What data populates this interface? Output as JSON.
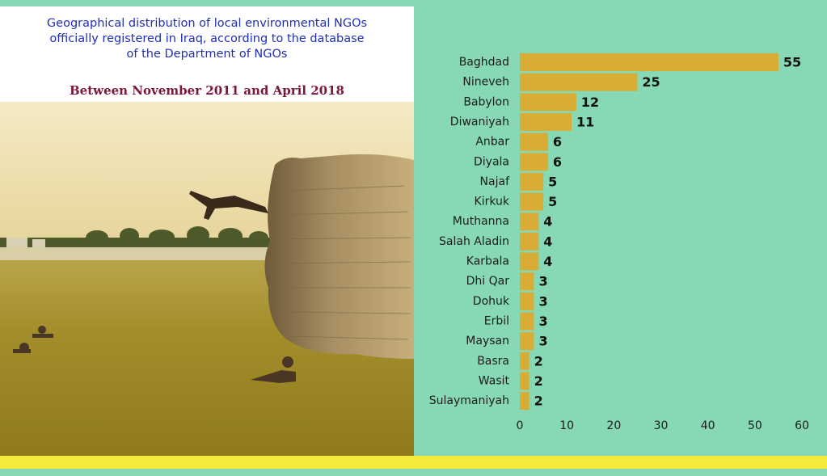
{
  "header": {
    "title_lines": [
      "Geographical distribution of local environmental NGOs",
      "officially registered in Iraq, according to the database",
      "of the Department of NGOs"
    ],
    "subtitle": "Between November 2011 and April 2018"
  },
  "colors": {
    "background": "#86d9b4",
    "bar": "#d8ac35",
    "title": "#1f2fb7",
    "subtitle": "#7c1735",
    "band": "#f3ea3a"
  },
  "chart_data": {
    "type": "bar",
    "orientation": "horizontal",
    "categories": [
      "Baghdad",
      "Nineveh",
      "Babylon",
      "Diwaniyah",
      "Anbar",
      "Diyala",
      "Najaf",
      "Kirkuk",
      "Muthanna",
      "Salah Aladin",
      "Karbala",
      "Dhi Qar",
      "Dohuk",
      "Erbil",
      "Maysan",
      "Basra",
      "Wasit",
      "Sulaymaniyah"
    ],
    "values": [
      55,
      25,
      12,
      11,
      6,
      6,
      5,
      5,
      4,
      4,
      4,
      3,
      3,
      3,
      3,
      2,
      2,
      2
    ],
    "xlim": [
      0,
      60
    ],
    "xticks": [
      0,
      10,
      20,
      30,
      40,
      50,
      60
    ],
    "grid": false,
    "data_labels": true
  }
}
